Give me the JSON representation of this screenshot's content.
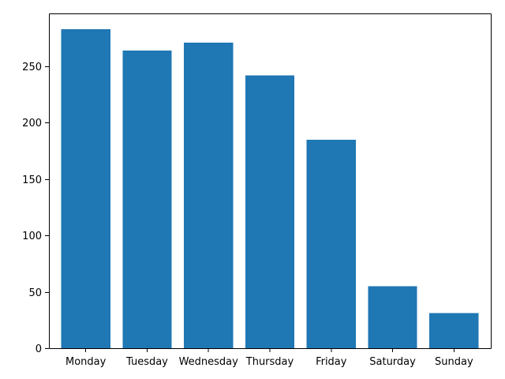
{
  "chart_data": {
    "type": "bar",
    "categories": [
      "Monday",
      "Tuesday",
      "Wednesday",
      "Thursday",
      "Friday",
      "Saturday",
      "Sunday"
    ],
    "values": [
      283,
      264,
      271,
      242,
      185,
      55,
      31
    ],
    "yticks": [
      0,
      50,
      100,
      150,
      200,
      250
    ],
    "ylim": [
      0,
      297
    ],
    "title": "",
    "xlabel": "",
    "ylabel": "",
    "grid": false,
    "colors": {
      "bar": "#1f77b4",
      "axis": "#000000"
    }
  }
}
